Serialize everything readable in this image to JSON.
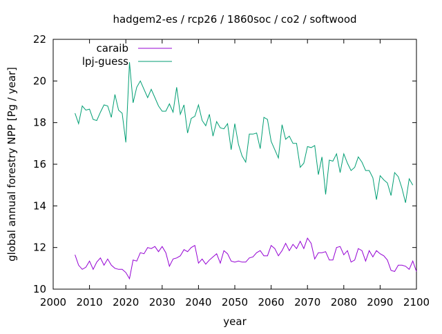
{
  "chart_data": {
    "type": "line",
    "title": "hadgem2-es / rcp26 / 1860soc / co2 / softwood",
    "xlabel": "year",
    "ylabel": "global annual forestry NPP [Pg / year]",
    "xlim": [
      2000,
      2100
    ],
    "ylim": [
      10,
      22
    ],
    "xticks": [
      2000,
      2010,
      2020,
      2030,
      2040,
      2050,
      2060,
      2070,
      2080,
      2090,
      2100
    ],
    "yticks": [
      10,
      12,
      14,
      16,
      18,
      20,
      22
    ],
    "grid": false,
    "legend_position": "top-left",
    "x_start": 2006,
    "series": [
      {
        "name": "caraib",
        "color": "#9400d3",
        "values": [
          11.65,
          11.15,
          10.95,
          11.05,
          11.35,
          10.95,
          11.3,
          11.5,
          11.15,
          11.45,
          11.15,
          11.0,
          10.95,
          10.95,
          10.8,
          10.5,
          11.4,
          11.35,
          11.75,
          11.7,
          12.0,
          11.95,
          12.05,
          11.8,
          12.05,
          11.75,
          11.1,
          11.45,
          11.5,
          11.6,
          11.9,
          11.8,
          12.0,
          12.1,
          11.25,
          11.45,
          11.2,
          11.4,
          11.55,
          11.7,
          11.25,
          11.85,
          11.7,
          11.35,
          11.3,
          11.35,
          11.3,
          11.3,
          11.5,
          11.55,
          11.75,
          11.85,
          11.6,
          11.6,
          12.1,
          11.95,
          11.6,
          11.85,
          12.2,
          11.85,
          12.15,
          11.95,
          12.3,
          11.95,
          12.45,
          12.2,
          11.45,
          11.75,
          11.75,
          11.8,
          11.4,
          11.4,
          12.0,
          12.05,
          11.65,
          11.85,
          11.3,
          11.4,
          11.95,
          11.85,
          11.35,
          11.85,
          11.55,
          11.85,
          11.7,
          11.6,
          11.4,
          10.9,
          10.85,
          11.15,
          11.15,
          11.1,
          10.95,
          11.35,
          10.85
        ]
      },
      {
        "name": "lpj-guess",
        "color": "#009e73",
        "values": [
          18.45,
          17.95,
          18.8,
          18.6,
          18.65,
          18.15,
          18.1,
          18.5,
          18.85,
          18.8,
          18.25,
          19.35,
          18.6,
          18.45,
          17.05,
          20.9,
          18.95,
          19.7,
          20.0,
          19.6,
          19.2,
          19.6,
          19.2,
          18.8,
          18.55,
          18.55,
          18.9,
          18.5,
          19.7,
          18.4,
          18.85,
          17.5,
          18.2,
          18.3,
          18.85,
          18.1,
          17.85,
          18.4,
          17.35,
          18.05,
          17.75,
          17.7,
          17.95,
          16.7,
          17.95,
          16.95,
          16.4,
          16.1,
          17.45,
          17.45,
          17.5,
          16.75,
          18.25,
          18.15,
          17.1,
          16.7,
          16.3,
          17.9,
          17.2,
          17.35,
          17.0,
          17.0,
          15.85,
          16.05,
          16.85,
          16.8,
          16.9,
          15.5,
          16.35,
          14.55,
          16.2,
          16.15,
          16.5,
          15.6,
          16.5,
          16.05,
          15.7,
          15.85,
          16.35,
          16.1,
          15.7,
          15.7,
          15.35,
          14.3,
          15.45,
          15.25,
          15.1,
          14.5,
          15.6,
          15.4,
          14.85,
          14.15,
          15.3,
          15.0
        ]
      }
    ]
  }
}
